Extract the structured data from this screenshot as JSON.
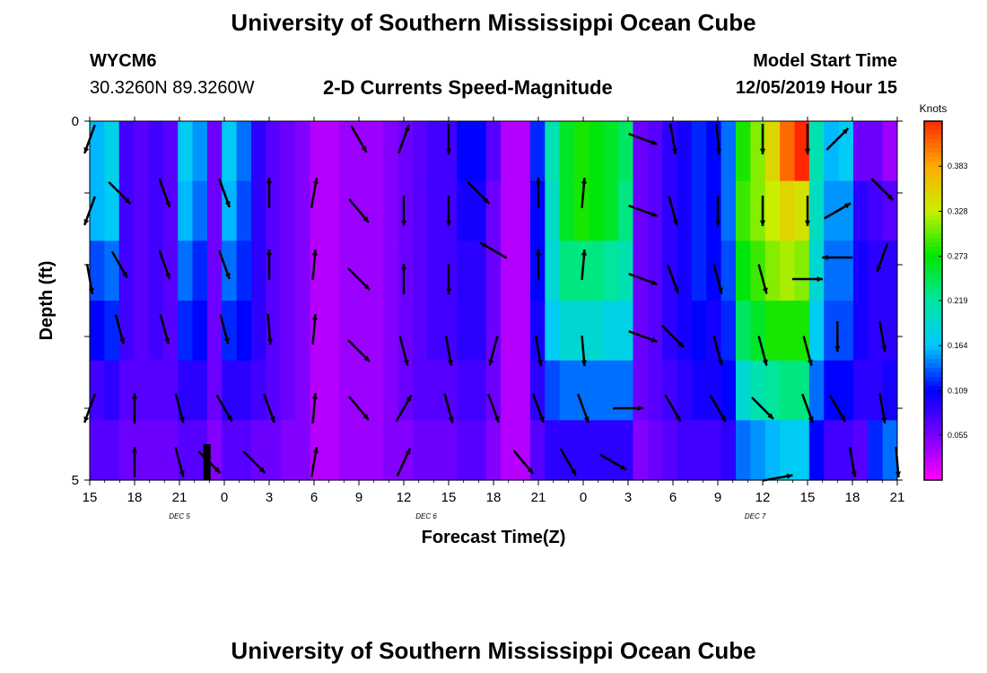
{
  "header": {
    "title": "University of Southern Mississippi Ocean Cube",
    "station": "WYCM6",
    "coords": "30.3260N 89.3260W",
    "subtitle": "2-D Currents Speed-Magnitude",
    "start_label": "Model Start Time",
    "start_value": "12/05/2019 Hour 15"
  },
  "footer": {
    "title": "University of Southern Mississippi Ocean Cube"
  },
  "chart_data": {
    "type": "heatmap",
    "xlabel": "Forecast Time(Z)",
    "ylabel": "Depth (ft)",
    "colorbar_label": "Knots",
    "colorbar_ticks": [
      "0.055",
      "0.109",
      "0.164",
      "0.219",
      "0.273",
      "0.328",
      "0.383"
    ],
    "colorbar_range": [
      0.0,
      0.438
    ],
    "x_tick_labels": [
      "15",
      "18",
      "21",
      "0",
      "3",
      "6",
      "9",
      "12",
      "15",
      "18",
      "21",
      "0",
      "3",
      "6",
      "9",
      "12",
      "15",
      "18",
      "21"
    ],
    "date_labels": [
      {
        "text": "DEC 5",
        "at_hours_from_start": 4.5
      },
      {
        "text": "DEC 6",
        "at_hours_from_start": 21
      },
      {
        "text": "DEC 7",
        "at_hours_from_start": 43
      }
    ],
    "y_tick_labels": [
      "0",
      "5"
    ],
    "ylim": [
      0,
      5
    ],
    "time_range_hours": [
      0,
      54
    ],
    "time_step_hours": 1,
    "depth_levels": 5,
    "speed": [
      [
        0.16,
        0.18,
        0.08,
        0.07,
        0.08,
        0.07,
        0.17,
        0.15,
        0.06,
        0.17,
        0.14,
        0.09,
        0.07,
        0.06,
        0.05,
        0.03,
        0.03,
        0.04,
        0.04,
        0.04,
        0.05,
        0.06,
        0.07,
        0.08,
        0.08,
        0.11,
        0.11,
        0.07,
        0.03,
        0.03,
        0.12,
        0.21,
        0.26,
        0.28,
        0.27,
        0.26,
        0.24,
        0.06,
        0.07,
        0.09,
        0.1,
        0.12,
        0.11,
        0.14,
        0.28,
        0.31,
        0.35,
        0.41,
        0.44,
        0.21,
        0.16,
        0.17,
        0.06,
        0.06,
        0.04
      ],
      [
        0.16,
        0.17,
        0.08,
        0.07,
        0.08,
        0.07,
        0.16,
        0.14,
        0.06,
        0.16,
        0.13,
        0.09,
        0.07,
        0.06,
        0.05,
        0.03,
        0.03,
        0.04,
        0.04,
        0.04,
        0.05,
        0.06,
        0.07,
        0.08,
        0.08,
        0.1,
        0.1,
        0.06,
        0.03,
        0.03,
        0.11,
        0.2,
        0.26,
        0.28,
        0.27,
        0.26,
        0.23,
        0.06,
        0.07,
        0.09,
        0.1,
        0.12,
        0.11,
        0.14,
        0.29,
        0.31,
        0.33,
        0.35,
        0.34,
        0.2,
        0.15,
        0.15,
        0.09,
        0.08,
        0.07
      ],
      [
        0.13,
        0.14,
        0.08,
        0.07,
        0.08,
        0.07,
        0.14,
        0.12,
        0.06,
        0.14,
        0.12,
        0.09,
        0.07,
        0.06,
        0.05,
        0.03,
        0.03,
        0.04,
        0.04,
        0.04,
        0.05,
        0.06,
        0.07,
        0.08,
        0.08,
        0.09,
        0.09,
        0.06,
        0.03,
        0.03,
        0.11,
        0.19,
        0.23,
        0.23,
        0.23,
        0.22,
        0.21,
        0.06,
        0.07,
        0.09,
        0.1,
        0.12,
        0.11,
        0.13,
        0.27,
        0.29,
        0.31,
        0.32,
        0.31,
        0.19,
        0.14,
        0.14,
        0.1,
        0.09,
        0.09
      ],
      [
        0.11,
        0.12,
        0.08,
        0.07,
        0.08,
        0.07,
        0.12,
        0.11,
        0.06,
        0.12,
        0.11,
        0.09,
        0.07,
        0.06,
        0.05,
        0.03,
        0.03,
        0.04,
        0.04,
        0.04,
        0.05,
        0.06,
        0.07,
        0.08,
        0.08,
        0.09,
        0.09,
        0.06,
        0.03,
        0.03,
        0.1,
        0.17,
        0.19,
        0.19,
        0.19,
        0.18,
        0.18,
        0.06,
        0.07,
        0.09,
        0.1,
        0.11,
        0.1,
        0.12,
        0.24,
        0.26,
        0.28,
        0.28,
        0.28,
        0.17,
        0.13,
        0.13,
        0.1,
        0.09,
        0.09
      ],
      [
        0.08,
        0.09,
        0.07,
        0.07,
        0.07,
        0.07,
        0.09,
        0.09,
        0.06,
        0.09,
        0.09,
        0.08,
        0.07,
        0.06,
        0.05,
        0.03,
        0.03,
        0.04,
        0.04,
        0.04,
        0.05,
        0.06,
        0.07,
        0.07,
        0.07,
        0.08,
        0.08,
        0.06,
        0.03,
        0.03,
        0.09,
        0.13,
        0.14,
        0.14,
        0.14,
        0.14,
        0.14,
        0.06,
        0.07,
        0.08,
        0.09,
        0.1,
        0.1,
        0.11,
        0.19,
        0.21,
        0.22,
        0.23,
        0.23,
        0.14,
        0.11,
        0.11,
        0.09,
        0.09,
        0.1
      ],
      [
        0.07,
        0.07,
        0.06,
        0.06,
        0.06,
        0.06,
        0.07,
        0.07,
        0.05,
        0.07,
        0.07,
        0.06,
        0.06,
        0.05,
        0.05,
        0.03,
        0.03,
        0.04,
        0.04,
        0.04,
        0.05,
        0.05,
        0.06,
        0.06,
        0.06,
        0.07,
        0.07,
        0.05,
        0.03,
        0.03,
        0.07,
        0.09,
        0.09,
        0.09,
        0.09,
        0.09,
        0.09,
        0.05,
        0.06,
        0.07,
        0.08,
        0.08,
        0.08,
        0.09,
        0.14,
        0.15,
        0.16,
        0.17,
        0.17,
        0.11,
        0.08,
        0.08,
        0.07,
        0.12,
        0.14
      ]
    ],
    "arrows": [
      {
        "t": 0,
        "d": 0.25,
        "deg": 200
      },
      {
        "t": 2,
        "d": 1.0,
        "deg": 135
      },
      {
        "t": 5,
        "d": 1.0,
        "deg": 160
      },
      {
        "t": 9,
        "d": 1.0,
        "deg": 160
      },
      {
        "t": 12,
        "d": 1.0,
        "deg": 0
      },
      {
        "t": 15,
        "d": 1.0,
        "deg": 10
      },
      {
        "t": 18,
        "d": 0.25,
        "deg": 150
      },
      {
        "t": 21,
        "d": 0.25,
        "deg": 20
      },
      {
        "t": 24,
        "d": 0.25,
        "deg": 180
      },
      {
        "t": 26,
        "d": 1.0,
        "deg": 135
      },
      {
        "t": 30,
        "d": 1.0,
        "deg": 0
      },
      {
        "t": 33,
        "d": 1.0,
        "deg": 5
      },
      {
        "t": 37,
        "d": 0.25,
        "deg": 110
      },
      {
        "t": 39,
        "d": 0.25,
        "deg": 170
      },
      {
        "t": 42,
        "d": 0.25,
        "deg": 175
      },
      {
        "t": 45,
        "d": 0.25,
        "deg": 180
      },
      {
        "t": 48,
        "d": 0.25,
        "deg": 180
      },
      {
        "t": 50,
        "d": 0.25,
        "deg": 45
      },
      {
        "t": 0,
        "d": 1.25,
        "deg": 200
      },
      {
        "t": 9,
        "d": 1.0,
        "deg": 160
      },
      {
        "t": 18,
        "d": 1.25,
        "deg": 140
      },
      {
        "t": 21,
        "d": 1.25,
        "deg": 180
      },
      {
        "t": 24,
        "d": 1.25,
        "deg": 180
      },
      {
        "t": 37,
        "d": 1.25,
        "deg": 110
      },
      {
        "t": 39,
        "d": 1.25,
        "deg": 165
      },
      {
        "t": 42,
        "d": 1.25,
        "deg": 180
      },
      {
        "t": 45,
        "d": 1.25,
        "deg": 180
      },
      {
        "t": 48,
        "d": 1.25,
        "deg": 180
      },
      {
        "t": 50,
        "d": 1.25,
        "deg": 60
      },
      {
        "t": 53,
        "d": 0.95,
        "deg": 135
      },
      {
        "t": 2,
        "d": 2.0,
        "deg": 150
      },
      {
        "t": 5,
        "d": 2.0,
        "deg": 160
      },
      {
        "t": 9,
        "d": 2.0,
        "deg": 160
      },
      {
        "t": 12,
        "d": 2.0,
        "deg": 0
      },
      {
        "t": 15,
        "d": 2.0,
        "deg": 5
      },
      {
        "t": 18,
        "d": 2.2,
        "deg": 135
      },
      {
        "t": 21,
        "d": 2.2,
        "deg": 0
      },
      {
        "t": 24,
        "d": 2.2,
        "deg": 180
      },
      {
        "t": 27,
        "d": 1.8,
        "deg": 300
      },
      {
        "t": 30,
        "d": 2.0,
        "deg": 0
      },
      {
        "t": 33,
        "d": 2.0,
        "deg": 5
      },
      {
        "t": 37,
        "d": 2.2,
        "deg": 110
      },
      {
        "t": 39,
        "d": 2.2,
        "deg": 160
      },
      {
        "t": 42,
        "d": 2.2,
        "deg": 165
      },
      {
        "t": 45,
        "d": 2.2,
        "deg": 165
      },
      {
        "t": 48,
        "d": 2.2,
        "deg": 90
      },
      {
        "t": 50,
        "d": 1.9,
        "deg": 270
      },
      {
        "t": 53,
        "d": 1.9,
        "deg": 200
      },
      {
        "t": 0,
        "d": 2.2,
        "deg": 170
      },
      {
        "t": 2,
        "d": 2.9,
        "deg": 165
      },
      {
        "t": 5,
        "d": 2.9,
        "deg": 165
      },
      {
        "t": 9,
        "d": 2.9,
        "deg": 165
      },
      {
        "t": 12,
        "d": 2.9,
        "deg": 175
      },
      {
        "t": 15,
        "d": 2.9,
        "deg": 5
      },
      {
        "t": 18,
        "d": 3.2,
        "deg": 135
      },
      {
        "t": 21,
        "d": 3.2,
        "deg": 165
      },
      {
        "t": 24,
        "d": 3.2,
        "deg": 170
      },
      {
        "t": 27,
        "d": 3.2,
        "deg": 195
      },
      {
        "t": 30,
        "d": 3.2,
        "deg": 170
      },
      {
        "t": 33,
        "d": 3.2,
        "deg": 175
      },
      {
        "t": 37,
        "d": 3.0,
        "deg": 110
      },
      {
        "t": 39,
        "d": 3.0,
        "deg": 135
      },
      {
        "t": 42,
        "d": 3.2,
        "deg": 165
      },
      {
        "t": 45,
        "d": 3.2,
        "deg": 165
      },
      {
        "t": 48,
        "d": 3.2,
        "deg": 165
      },
      {
        "t": 50,
        "d": 3.0,
        "deg": 180
      },
      {
        "t": 53,
        "d": 3.0,
        "deg": 170
      },
      {
        "t": 0,
        "d": 4.0,
        "deg": 200
      },
      {
        "t": 3,
        "d": 4.0,
        "deg": 0
      },
      {
        "t": 6,
        "d": 4.0,
        "deg": 165
      },
      {
        "t": 9,
        "d": 4.0,
        "deg": 150
      },
      {
        "t": 12,
        "d": 4.0,
        "deg": 160
      },
      {
        "t": 15,
        "d": 4.0,
        "deg": 5
      },
      {
        "t": 18,
        "d": 4.0,
        "deg": 140
      },
      {
        "t": 21,
        "d": 4.0,
        "deg": 30
      },
      {
        "t": 24,
        "d": 4.0,
        "deg": 165
      },
      {
        "t": 27,
        "d": 4.0,
        "deg": 160
      },
      {
        "t": 30,
        "d": 4.0,
        "deg": 160
      },
      {
        "t": 33,
        "d": 4.0,
        "deg": 160
      },
      {
        "t": 36,
        "d": 4.0,
        "deg": 90
      },
      {
        "t": 39,
        "d": 4.0,
        "deg": 150
      },
      {
        "t": 42,
        "d": 4.0,
        "deg": 150
      },
      {
        "t": 45,
        "d": 4.0,
        "deg": 135
      },
      {
        "t": 48,
        "d": 4.0,
        "deg": 160
      },
      {
        "t": 50,
        "d": 4.0,
        "deg": 150
      },
      {
        "t": 53,
        "d": 4.0,
        "deg": 170
      },
      {
        "t": 3,
        "d": 4.75,
        "deg": 0
      },
      {
        "t": 6,
        "d": 4.75,
        "deg": 165
      },
      {
        "t": 8,
        "d": 4.75,
        "deg": 135
      },
      {
        "t": 11,
        "d": 4.75,
        "deg": 135
      },
      {
        "t": 15,
        "d": 4.75,
        "deg": 10
      },
      {
        "t": 21,
        "d": 4.75,
        "deg": 25
      },
      {
        "t": 29,
        "d": 4.75,
        "deg": 140
      },
      {
        "t": 32,
        "d": 4.75,
        "deg": 150
      },
      {
        "t": 35,
        "d": 4.75,
        "deg": 120
      },
      {
        "t": 46,
        "d": 4.97,
        "deg": 80
      },
      {
        "t": 51,
        "d": 4.75,
        "deg": 170
      },
      {
        "t": 54,
        "d": 4.75,
        "deg": 175
      }
    ],
    "grid": false
  }
}
